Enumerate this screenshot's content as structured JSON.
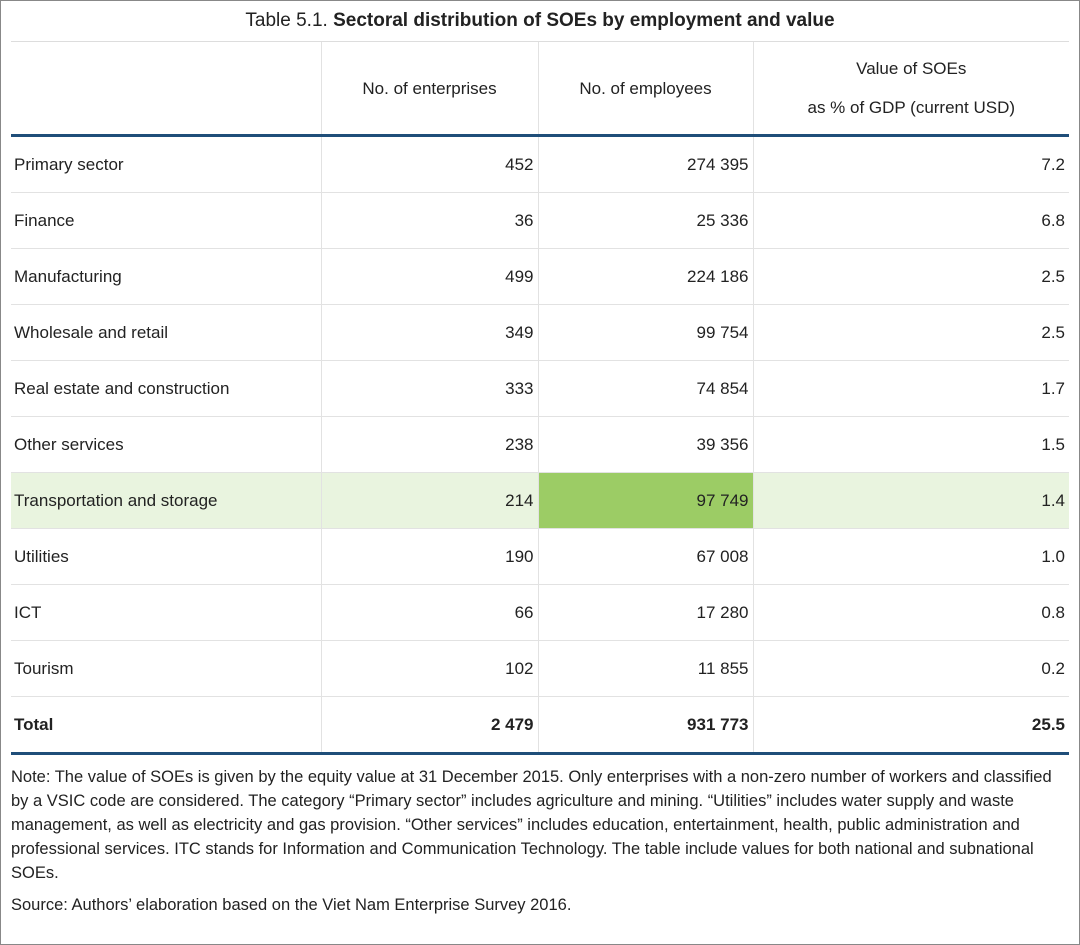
{
  "title": {
    "label": "Table 5.1.",
    "text": "Sectoral distribution of SOEs by employment and value"
  },
  "table": {
    "header": [
      "",
      "No. of enterprises",
      "No. of employees",
      [
        "Value of SOEs",
        "as % of GDP (current USD)"
      ]
    ],
    "rows": [
      [
        "Primary sector",
        "452",
        "274 395",
        "7.2"
      ],
      [
        "Finance",
        "36",
        "25 336",
        "6.8"
      ],
      [
        "Manufacturing",
        "499",
        "224 186",
        "2.5"
      ],
      [
        "Wholesale and retail",
        "349",
        "99 754",
        "2.5"
      ],
      [
        "Real estate and construction",
        "333",
        "74 854",
        "1.7"
      ],
      [
        "Other services",
        "238",
        "39 356",
        "1.5"
      ],
      [
        "Transportation and storage",
        "214",
        "97 749",
        "1.4"
      ],
      [
        "Utilities",
        "190",
        "67 008",
        "1.0"
      ],
      [
        "ICT",
        "66",
        "17 280",
        "0.8"
      ],
      [
        "Tourism",
        "102",
        "11 855",
        "0.2"
      ]
    ],
    "total": [
      "Total",
      "2 479",
      "931 773",
      "25.5"
    ]
  },
  "note": "Note: The value of SOEs is given by the equity value at 31 December 2015. Only enterprises with a non-zero number of workers and classified by a VSIC code are considered. The category “Primary sector” includes agriculture and mining. “Utilities” includes water supply and waste management, as well as electricity and gas provision. “Other services” includes education, entertainment, health, public administration and professional services. ITC stands for Information and Communication Technology. The table include values for both national and subnational SOEs.",
  "source": "Source: Authors’ elaboration based on the Viet Nam Enterprise Survey 2016."
}
